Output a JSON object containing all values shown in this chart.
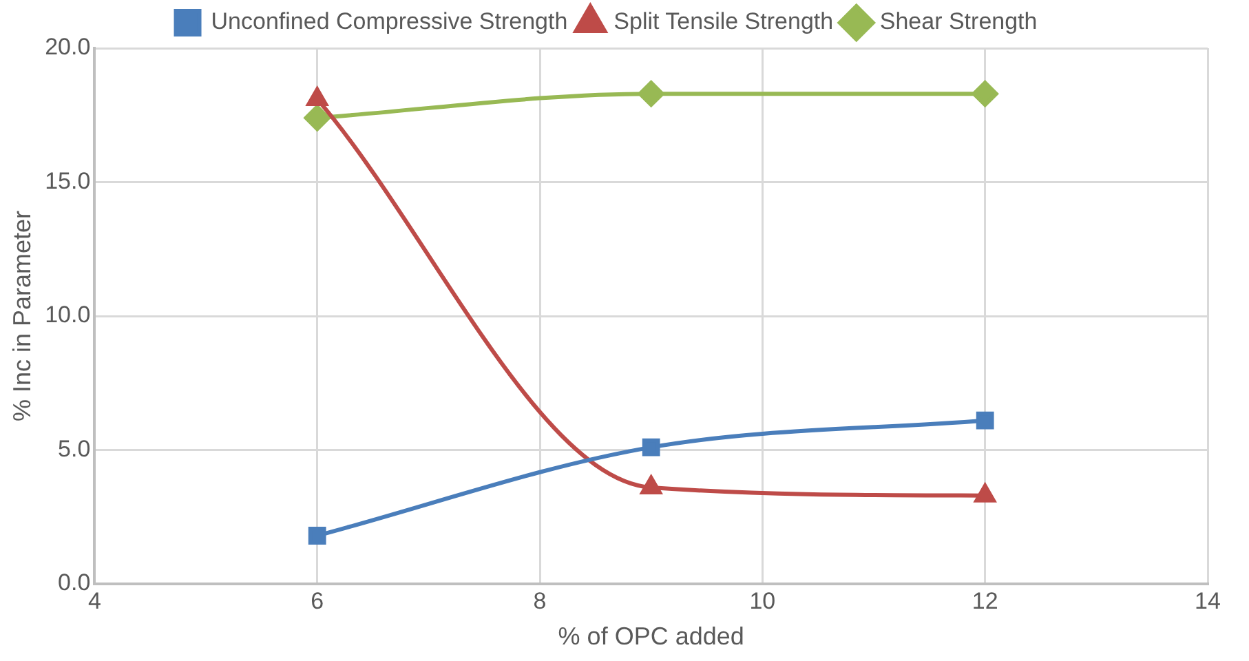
{
  "chart_data": {
    "type": "line",
    "xlabel": "% of OPC added",
    "ylabel": "% Inc in Parameter",
    "x": [
      6,
      9,
      12
    ],
    "series": [
      {
        "name": "Unconfined Compressive Strength",
        "color": "#4a7ebb",
        "marker": "square",
        "values": [
          1.8,
          5.1,
          6.1
        ]
      },
      {
        "name": "Split Tensile Strength",
        "color": "#be4b48",
        "marker": "triangle",
        "values": [
          18.1,
          3.6,
          3.3
        ]
      },
      {
        "name": "Shear Strength",
        "color": "#98b954",
        "marker": "diamond",
        "values": [
          17.4,
          18.3,
          18.3
        ]
      }
    ],
    "xlim": [
      4,
      14
    ],
    "xticks": [
      4,
      6,
      8,
      10,
      12,
      14
    ],
    "ylim": [
      0,
      20
    ],
    "yticks": [
      {
        "value": 0,
        "label": "0.0"
      },
      {
        "value": 5,
        "label": "5.0"
      },
      {
        "value": 10,
        "label": "10.0"
      },
      {
        "value": 15,
        "label": "15.0"
      },
      {
        "value": 20,
        "label": "20.0"
      }
    ],
    "grid": true,
    "legend": "top"
  }
}
